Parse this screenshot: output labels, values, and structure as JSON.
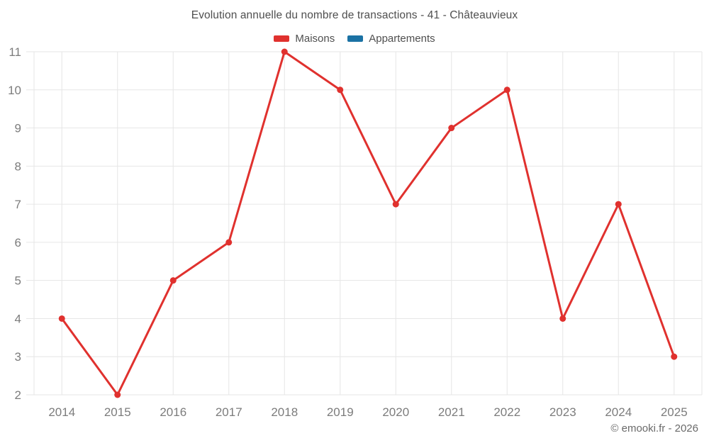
{
  "chart_data": {
    "type": "line",
    "title": "Evolution annuelle du nombre de transactions - 41 - Châteauvieux",
    "categories": [
      "2014",
      "2015",
      "2016",
      "2017",
      "2018",
      "2019",
      "2020",
      "2021",
      "2022",
      "2023",
      "2024",
      "2025"
    ],
    "series": [
      {
        "name": "Maisons",
        "color": "#e0312e",
        "values": [
          4,
          2,
          5,
          6,
          11,
          10,
          7,
          9,
          10,
          4,
          7,
          3
        ]
      },
      {
        "name": "Appartements",
        "color": "#1b72a4",
        "values": []
      }
    ],
    "xlabel": "",
    "ylabel": "",
    "ylim": [
      2,
      11
    ],
    "y_ticks": [
      2,
      3,
      4,
      5,
      6,
      7,
      8,
      9,
      10,
      11
    ],
    "grid": true,
    "legend_position": "top",
    "colors": {
      "gridline": "#e6e6e6",
      "axis_text": "#7c7c7c",
      "title_text": "#4f4f4f"
    }
  },
  "footer": {
    "copyright": "© emooki.fr - 2026"
  }
}
